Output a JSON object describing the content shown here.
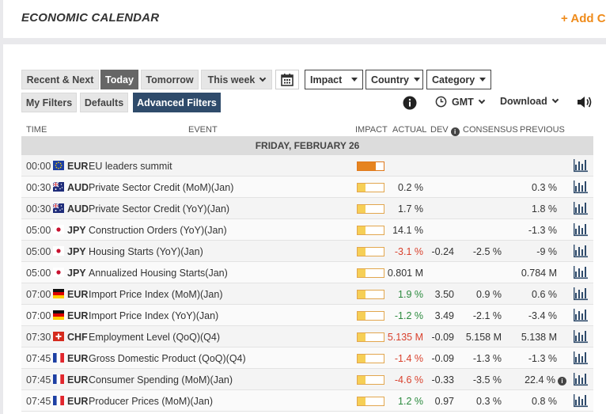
{
  "header": {
    "title": "ECONOMIC CALENDAR",
    "add_label": "+ Add C"
  },
  "filters": {
    "recent_next": "Recent & Next",
    "today": "Today",
    "tomorrow": "Tomorrow",
    "this_week": "This week",
    "impact": "Impact",
    "country": "Country",
    "category": "Category",
    "my_filters": "My Filters",
    "defaults": "Defaults",
    "advanced": "Advanced Filters"
  },
  "tools": {
    "timezone": "GMT",
    "download": "Download"
  },
  "columns": {
    "time": "TIME",
    "event": "EVENT",
    "impact": "IMPACT",
    "actual": "ACTUAL",
    "dev": "DEV",
    "consensus": "CONSENSUS",
    "previous": "PREVIOUS"
  },
  "day_label": "FRIDAY, FEBRUARY 26",
  "events": [
    {
      "time": "00:00",
      "flag": "eu",
      "currency": "EUR",
      "name": "EU leaders summit",
      "impact": 0.7,
      "actual": "",
      "actual_color": "",
      "dev": "",
      "consensus": "",
      "previous": "",
      "previous_info": false
    },
    {
      "time": "00:30",
      "flag": "au",
      "currency": "AUD",
      "name": "Private Sector Credit (MoM)(Jan)",
      "impact": 0.3,
      "actual": "0.2 %",
      "actual_color": "",
      "dev": "",
      "consensus": "",
      "previous": "0.3 %",
      "previous_info": false
    },
    {
      "time": "00:30",
      "flag": "au",
      "currency": "AUD",
      "name": "Private Sector Credit (YoY)(Jan)",
      "impact": 0.3,
      "actual": "1.7 %",
      "actual_color": "",
      "dev": "",
      "consensus": "",
      "previous": "1.8 %",
      "previous_info": false
    },
    {
      "time": "05:00",
      "flag": "jp",
      "currency": "JPY",
      "name": "Construction Orders (YoY)(Jan)",
      "impact": 0.3,
      "actual": "14.1 %",
      "actual_color": "",
      "dev": "",
      "consensus": "",
      "previous": "-1.3 %",
      "previous_info": false
    },
    {
      "time": "05:00",
      "flag": "jp",
      "currency": "JPY",
      "name": "Housing Starts (YoY)(Jan)",
      "impact": 0.3,
      "actual": "-3.1 %",
      "actual_color": "red",
      "dev": "-0.24",
      "consensus": "-2.5 %",
      "previous": "-9 %",
      "previous_info": false
    },
    {
      "time": "05:00",
      "flag": "jp",
      "currency": "JPY",
      "name": "Annualized Housing Starts(Jan)",
      "impact": 0.3,
      "actual": "0.801 M",
      "actual_color": "",
      "dev": "",
      "consensus": "",
      "previous": "0.784 M",
      "previous_info": false
    },
    {
      "time": "07:00",
      "flag": "de",
      "currency": "EUR",
      "name": "Import Price Index (MoM)(Jan)",
      "impact": 0.3,
      "actual": "1.9 %",
      "actual_color": "green",
      "dev": "3.50",
      "consensus": "0.9 %",
      "previous": "0.6 %",
      "previous_info": false
    },
    {
      "time": "07:00",
      "flag": "de",
      "currency": "EUR",
      "name": "Import Price Index (YoY)(Jan)",
      "impact": 0.3,
      "actual": "-1.2 %",
      "actual_color": "green",
      "dev": "3.49",
      "consensus": "-2.1 %",
      "previous": "-3.4 %",
      "previous_info": false
    },
    {
      "time": "07:30",
      "flag": "ch",
      "currency": "CHF",
      "name": "Employment Level (QoQ)(Q4)",
      "impact": 0.3,
      "actual": "5.135 M",
      "actual_color": "red",
      "dev": "-0.09",
      "consensus": "5.158 M",
      "previous": "5.138 M",
      "previous_info": false
    },
    {
      "time": "07:45",
      "flag": "fr",
      "currency": "EUR",
      "name": "Gross Domestic Product (QoQ)(Q4)",
      "impact": 0.3,
      "actual": "-1.4 %",
      "actual_color": "red",
      "dev": "-0.09",
      "consensus": "-1.3 %",
      "previous": "-1.3 %",
      "previous_info": false
    },
    {
      "time": "07:45",
      "flag": "fr",
      "currency": "EUR",
      "name": "Consumer Spending (MoM)(Jan)",
      "impact": 0.3,
      "actual": "-4.6 %",
      "actual_color": "red",
      "dev": "-0.33",
      "consensus": "-3.5 %",
      "previous": "22.4 %",
      "previous_info": true
    },
    {
      "time": "07:45",
      "flag": "fr",
      "currency": "EUR",
      "name": "Producer Prices (MoM)(Jan)",
      "impact": 0.3,
      "actual": "1.2 %",
      "actual_color": "green",
      "dev": "0.97",
      "consensus": "0.3 %",
      "previous": "0.8 %",
      "previous_info": false
    }
  ]
}
